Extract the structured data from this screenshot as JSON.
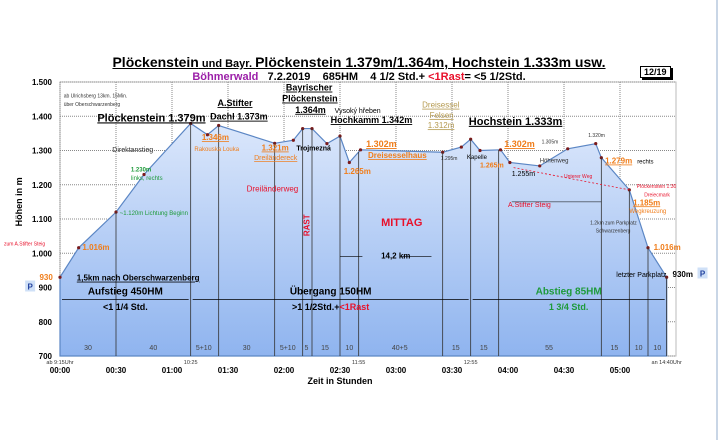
{
  "header": {
    "title_part1": "Plöckenstein",
    "title_part2": " und Bayr. ",
    "title_part3": "Plöckenstein 1.379m/1.364m, Hochstein 1.333m usw.",
    "region": "Böhmerwald",
    "date": "7.2.2019",
    "hm": "685HM",
    "time_main": "4 1/2 Std.+",
    "rest": "<1Rast",
    "time_total": "= <5 1/2Std.",
    "page": "12/19"
  },
  "colors": {
    "fill_top": "#dbe7fb",
    "fill_bottom": "#8fb4ef",
    "line": "#5b86c4",
    "orange": "#f07d1a",
    "red": "#e8102a",
    "green": "#1e9a3a"
  },
  "chart_data": {
    "type": "area",
    "xlabel": "Zeit in Stunden",
    "ylabel": "Höhen in m",
    "xlim": [
      0,
      330
    ],
    "ylim": [
      700,
      1500
    ],
    "yticks": [
      "700",
      "800",
      "900",
      "1.000",
      "1.100",
      "1.200",
      "1.300",
      "1.400",
      "1.500"
    ],
    "xticks": [
      "00:00",
      "00:30",
      "01:00",
      "01:30",
      "02:00",
      "02:30",
      "03:00",
      "03:30",
      "04:00",
      "04:30",
      "05:00"
    ],
    "clock_marks": [
      {
        "t": 0,
        "label": "ab 9:15Uhr"
      },
      {
        "t": 70,
        "label": "10:25"
      },
      {
        "t": 160,
        "label": "11:55"
      },
      {
        "t": 220,
        "label": "12:55"
      },
      {
        "t": 325,
        "label": "an 14:40Uhr"
      }
    ],
    "profile": {
      "t": [
        0,
        10,
        30,
        45,
        70,
        79,
        85,
        115,
        125,
        130,
        135,
        143,
        150,
        155,
        161,
        205,
        215,
        220,
        225,
        236,
        241,
        257,
        272,
        287,
        290,
        305,
        315,
        325
      ],
      "h": [
        930,
        1016,
        1120,
        1230,
        1379,
        1346,
        1373,
        1321,
        1330,
        1364,
        1364,
        1320,
        1342,
        1265,
        1302,
        1295,
        1310,
        1333,
        1300,
        1302,
        1265,
        1255,
        1305,
        1320,
        1279,
        1185,
        1016,
        930
      ]
    },
    "dividers": [
      30,
      70,
      85,
      115,
      130,
      135,
      150,
      160,
      205,
      220,
      235,
      290,
      305,
      315,
      325
    ],
    "segments": [
      {
        "t": 15,
        "label": "30"
      },
      {
        "t": 50,
        "label": "40"
      },
      {
        "t": 77,
        "label": "5+10"
      },
      {
        "t": 100,
        "label": "30"
      },
      {
        "t": 122,
        "label": "5+10"
      },
      {
        "t": 132,
        "label": "5"
      },
      {
        "t": 142,
        "label": "15"
      },
      {
        "t": 155,
        "label": "10"
      },
      {
        "t": 182,
        "label": "40+5"
      },
      {
        "t": 212,
        "label": "15"
      },
      {
        "t": 227,
        "label": "15"
      },
      {
        "t": 262,
        "label": "55"
      },
      {
        "t": 297,
        "label": "15"
      },
      {
        "t": 310,
        "label": "10"
      },
      {
        "t": 320,
        "label": "10"
      }
    ],
    "sections": [
      {
        "title": "Aufstieg 450HM",
        "time": "<1 1/4 Std.",
        "t0": 0,
        "t1": 70,
        "color": "#000"
      },
      {
        "title": "Übergang 150HM",
        "time": ">1 1/2Std.+",
        "extra": "<1Rast",
        "t0": 70,
        "t1": 220,
        "color": "#000"
      },
      {
        "title": "Abstieg 85HM",
        "time": "1 3/4 Std.",
        "t0": 220,
        "t1": 325,
        "color": "#1e9a3a"
      }
    ],
    "annotations": [
      {
        "t": 2,
        "h": 1450,
        "text": "ab Ulrichsberg 13km. 15Min.",
        "size": 5,
        "color": "#333"
      },
      {
        "t": 2,
        "h": 1435,
        "text": "über Oberschwarzenberg",
        "size": 5,
        "color": "#333"
      },
      {
        "t": 20,
        "h": 1385,
        "text": "Plöckenstein 1.379m",
        "size": 11,
        "color": "#000",
        "bold": true,
        "u": true
      },
      {
        "t": 79,
        "h": 1430,
        "text": "A.Stifter",
        "size": 9,
        "color": "#000",
        "bold": true,
        "u": true
      },
      {
        "t": 74,
        "h": 1390,
        "text": "Dachl 1.373m",
        "size": 9,
        "color": "#000",
        "bold": true,
        "u": true
      },
      {
        "t": 121,
        "h": 1475,
        "text": "Bayrischer",
        "size": 9,
        "color": "#000",
        "bold": true,
        "u": true
      },
      {
        "t": 119,
        "h": 1443,
        "text": "Plöckenstein",
        "size": 9,
        "color": "#000",
        "bold": true,
        "u": true
      },
      {
        "t": 126,
        "h": 1410,
        "text": "1.364m",
        "size": 9,
        "color": "#000",
        "bold": true,
        "u": true
      },
      {
        "t": 145,
        "h": 1410,
        "text": "Vysoký hřeben",
        "size": 7,
        "color": "#000"
      },
      {
        "t": 145,
        "h": 1380,
        "text": "Hochkamm 1.342m",
        "size": 9,
        "color": "#000",
        "bold": true,
        "u": true
      },
      {
        "t": 194,
        "h": 1425,
        "text": "Dreisessel",
        "size": 8,
        "color": "#b59a50",
        "u": true
      },
      {
        "t": 198,
        "h": 1395,
        "text": "Felsen",
        "size": 8,
        "color": "#b59a50",
        "u": true
      },
      {
        "t": 197,
        "h": 1365,
        "text": "1.312m",
        "size": 8,
        "color": "#b59a50",
        "u": true
      },
      {
        "t": 219,
        "h": 1375,
        "text": "Hochstein 1.333m",
        "size": 11,
        "color": "#000",
        "bold": true,
        "u": true
      },
      {
        "t": 28,
        "h": 1295,
        "text": "Direktanstieg",
        "size": 7,
        "color": "#333"
      },
      {
        "t": 76,
        "h": 1330,
        "text": "1.346m",
        "size": 8,
        "color": "#f07d1a",
        "bold": true,
        "u": true
      },
      {
        "t": 72,
        "h": 1298,
        "text": "Rakouska Louka",
        "size": 6,
        "color": "#f07d1a"
      },
      {
        "t": 108,
        "h": 1300,
        "text": "1.321m",
        "size": 8,
        "color": "#f07d1a",
        "bold": true,
        "u": true
      },
      {
        "t": 104,
        "h": 1272,
        "text": "Dreiländereck",
        "size": 7,
        "color": "#f07d1a",
        "u": true
      },
      {
        "t": 125,
        "h": 1300,
        "text": "Trojmezná",
        "size": 7,
        "color": "#000",
        "bold": true
      },
      {
        "t": 152,
        "h": 1232,
        "text": "1.265m",
        "size": 8,
        "color": "#f07d1a",
        "bold": true
      },
      {
        "t": 164,
        "h": 1310,
        "text": "1.302m",
        "size": 9,
        "color": "#f07d1a",
        "bold": true,
        "u": true
      },
      {
        "t": 165,
        "h": 1278,
        "text": "Dreisesselhaus",
        "size": 8,
        "color": "#f07d1a",
        "bold": true,
        "u": true
      },
      {
        "t": 204,
        "h": 1272,
        "text": "1.295m",
        "size": 5,
        "color": "#333"
      },
      {
        "t": 218,
        "h": 1275,
        "text": "Kapelle",
        "size": 6,
        "color": "#000"
      },
      {
        "t": 238,
        "h": 1310,
        "text": "1.302m",
        "size": 9,
        "color": "#f07d1a",
        "bold": true,
        "u": true
      },
      {
        "t": 225,
        "h": 1250,
        "text": "1.265m",
        "size": 7,
        "color": "#f07d1a",
        "bold": true
      },
      {
        "t": 242,
        "h": 1225,
        "text": "1.255m",
        "size": 7,
        "color": "#000"
      },
      {
        "t": 258,
        "h": 1320,
        "text": "1.305m",
        "size": 5,
        "color": "#333"
      },
      {
        "t": 283,
        "h": 1340,
        "text": "1.320m",
        "size": 5,
        "color": "#333"
      },
      {
        "t": 257,
        "h": 1265,
        "text": "Höhenweg",
        "size": 6,
        "color": "#333"
      },
      {
        "t": 292,
        "h": 1262,
        "text": "1.279m",
        "size": 8,
        "color": "#f07d1a",
        "bold": true,
        "u": true
      },
      {
        "t": 306,
        "h": 1262,
        "text": "rechts",
        "size": 6,
        "color": "#000"
      },
      {
        "t": 270,
        "h": 1220,
        "text": "Unterer Weg",
        "size": 5,
        "color": "#e8102a"
      },
      {
        "t": 309,
        "h": 1185,
        "text": "Plöckenstein 1:30",
        "size": 5,
        "color": "#e8102a"
      },
      {
        "t": 313,
        "h": 1170,
        "text": "Dreiecmark",
        "size": 5,
        "color": "#e8102a"
      },
      {
        "t": 307,
        "h": 1140,
        "text": "1.185m",
        "size": 8,
        "color": "#f07d1a",
        "bold": true,
        "u": true
      },
      {
        "t": 305,
        "h": 1118,
        "text": "Wegkreuzung",
        "size": 6,
        "color": "#f07d1a"
      },
      {
        "t": 240,
        "h": 1135,
        "text": "A.Stifter Steig",
        "size": 7,
        "color": "#e8102a"
      },
      {
        "t": 284,
        "h": 1080,
        "text": "1.2km zum Parkplatz",
        "size": 5,
        "color": "#333"
      },
      {
        "t": 287,
        "h": 1068,
        "text": "Schwarzenberg",
        "size": 5,
        "color": "#333"
      },
      {
        "t": 318,
        "h": 1010,
        "text": "1.016m",
        "size": 8,
        "color": "#f07d1a",
        "bold": true
      },
      {
        "t": 298,
        "h": 930,
        "text": "letzter Parkplatz",
        "size": 7,
        "color": "#000"
      },
      {
        "t": 326,
        "h": 930,
        "text": "930m",
        "size": 8,
        "color": "#000",
        "bold": true
      },
      {
        "t": 38,
        "h": 1235,
        "text": "1.230m",
        "size": 6,
        "color": "#1e9a3a",
        "bold": true
      },
      {
        "t": 38,
        "h": 1220,
        "text": "links, rechts",
        "size": 6,
        "color": "#1e9a3a"
      },
      {
        "t": 32,
        "h": 1112,
        "text": "~1.120m Lichtung Beginn",
        "size": 6,
        "color": "#1e9a3a"
      },
      {
        "t": 12,
        "h": 1010,
        "text": "1.016m",
        "size": 8,
        "color": "#f07d1a",
        "bold": true
      },
      {
        "t": -30,
        "h": 1022,
        "text": "zum A.Stifter Steig",
        "size": 5,
        "color": "#e8102a"
      },
      {
        "t": -11,
        "h": 922,
        "text": "930",
        "size": 8,
        "color": "#f07d1a",
        "bold": true
      },
      {
        "t": 9,
        "h": 920,
        "text": "1,5km nach Oberschwarzenberg",
        "size": 8,
        "color": "#000",
        "bold": true,
        "u": true
      },
      {
        "t": 100,
        "h": 1180,
        "text": "Dreiländerweg",
        "size": 8,
        "color": "#e8102a"
      },
      {
        "t": 172,
        "h": 1080,
        "text": "MITTAG",
        "size": 11,
        "color": "#e8102a",
        "bold": true
      },
      {
        "t": 172,
        "h": 985,
        "text": "14,2 km",
        "size": 8,
        "color": "#000",
        "bold": true
      }
    ],
    "rast_label": "RAST",
    "parking": "P"
  }
}
